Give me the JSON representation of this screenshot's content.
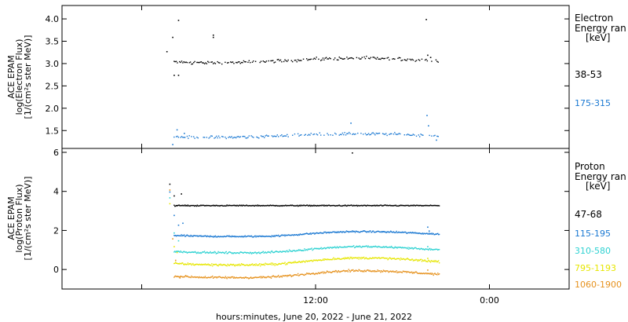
{
  "chart_data": [
    {
      "type": "scatter",
      "ylabel_lines": [
        "ACE EPAM",
        "log(Electron Flux)",
        "[1/(cm²s ster MeV)]"
      ],
      "legend_title": [
        "Electron",
        "Energy ran",
        "[keV]"
      ],
      "ylim": [
        1.1,
        4.3
      ],
      "yticks": [
        "1.5",
        "2.0",
        "2.5",
        "3.0",
        "3.5",
        "4.0"
      ],
      "ytick_values": [
        1.5,
        2.0,
        2.5,
        3.0,
        3.5,
        4.0
      ],
      "series": [
        {
          "name": "38-53",
          "color": "#000000",
          "base": 3.08,
          "wave": 0.05,
          "noise": 0.05,
          "spikes": [
            [
              -10.3,
              3.28
            ],
            [
              -9.9,
              3.6
            ],
            [
              -9.5,
              3.98
            ],
            [
              -9.8,
              2.75
            ],
            [
              -9.5,
              2.75
            ],
            [
              -7.1,
              3.65
            ],
            [
              -7.1,
              3.6
            ],
            [
              7.6,
              4.0
            ],
            [
              7.9,
              3.15
            ],
            [
              7.7,
              3.2
            ]
          ]
        },
        {
          "name": "175-315",
          "color": "#1a78d2",
          "base": 1.4,
          "wave": 0.04,
          "noise": 0.05,
          "spikes": [
            [
              -9.9,
              1.2
            ],
            [
              -9.6,
              1.53
            ],
            [
              -9.1,
              1.45
            ],
            [
              2.4,
              1.68
            ],
            [
              7.65,
              1.85
            ],
            [
              7.75,
              1.62
            ],
            [
              8.3,
              1.3
            ]
          ]
        }
      ]
    },
    {
      "type": "scatter",
      "ylabel_lines": [
        "ACE EPAM",
        "log(Proton Flux)",
        "[1/(cm²s ster MeV)]"
      ],
      "legend_title": [
        "Proton",
        "Energy ran",
        "[keV]"
      ],
      "ylim": [
        -1,
        6.2
      ],
      "yticks": [
        "0",
        "2",
        "4",
        "6"
      ],
      "ytick_values": [
        0,
        2,
        4,
        6
      ],
      "series": [
        {
          "name": "47-68",
          "color": "#000000",
          "base": 3.3,
          "wave": 0.0,
          "noise": 0.04,
          "spikes": [
            [
              -10.1,
              4.4
            ],
            [
              -9.8,
              3.8
            ],
            [
              -9.6,
              3.3
            ],
            [
              -9.3,
              3.9
            ],
            [
              2.5,
              6.0
            ]
          ]
        },
        {
          "name": "115-195",
          "color": "#1a78d2",
          "base": 1.85,
          "wave": 0.12,
          "noise": 0.06,
          "spikes": [
            [
              -10.1,
              4.0
            ],
            [
              -9.8,
              2.8
            ],
            [
              -9.5,
              2.3
            ],
            [
              -9.2,
              2.4
            ],
            [
              7.7,
              2.2
            ],
            [
              7.8,
              2.0
            ]
          ]
        },
        {
          "name": "310-580",
          "color": "#2fd2d2",
          "base": 1.05,
          "wave": 0.15,
          "noise": 0.07,
          "spikes": [
            [
              -10.1,
              3.7
            ],
            [
              -9.8,
              1.9
            ],
            [
              -9.5,
              1.5
            ],
            [
              7.7,
              1.2
            ]
          ]
        },
        {
          "name": "795-1193",
          "color": "#e6e600",
          "base": 0.45,
          "wave": 0.17,
          "noise": 0.08,
          "spikes": [
            [
              -10.1,
              3.4
            ],
            [
              -9.8,
              1.2
            ],
            [
              -9.6,
              0.9
            ],
            [
              7.7,
              0.6
            ]
          ]
        },
        {
          "name": "1060-1900",
          "color": "#e6921e",
          "base": -0.2,
          "wave": 0.17,
          "noise": 0.08,
          "spikes": [
            [
              -10.1,
              4.1
            ],
            [
              -9.9,
              1.6
            ],
            [
              -9.7,
              0.5
            ],
            [
              -9.4,
              -0.4
            ],
            [
              7.7,
              0.0
            ]
          ]
        }
      ]
    }
  ],
  "x_axis": {
    "label": "hours:minutes, June 20, 2022 - June 21, 2022",
    "xlim_hours": [
      -17.5,
      17.5
    ],
    "data_range_hours": [
      -10.4,
      8.7
    ],
    "ticks": [
      {
        "hour": 0,
        "label": "12:00"
      },
      {
        "hour": 12,
        "label": "0:00"
      }
    ],
    "minor_tick_hours": [
      -12,
      24
    ]
  }
}
